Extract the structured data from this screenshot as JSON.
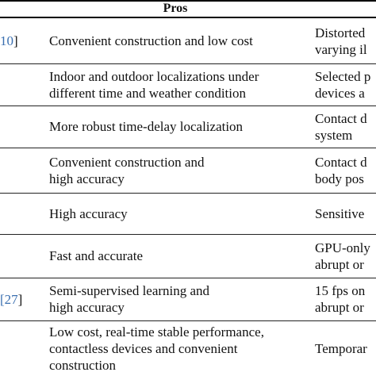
{
  "header": {
    "pros": "Pros"
  },
  "rows": [
    {
      "ref": "10",
      "bracket": "]",
      "pros": "Convenient construction and low cost",
      "cons": "Distorted\nvarying il"
    },
    {
      "ref": "",
      "bracket": "",
      "pros": "Indoor and outdoor localizations under\ndifferent time and weather condition",
      "cons": "Selected p\ndevices a"
    },
    {
      "ref": "",
      "bracket": "",
      "pros": "More robust time-delay localization",
      "cons": "Contact d\nsystem"
    },
    {
      "ref": "",
      "bracket": "",
      "pros": "Convenient construction and\nhigh accuracy",
      "cons": "Contact d\nbody pos"
    },
    {
      "ref": "",
      "bracket": "",
      "pros": "High accuracy",
      "cons": "Sensitive"
    },
    {
      "ref": "",
      "bracket": "",
      "pros": "Fast and accurate",
      "cons": "GPU-only\nabrupt or"
    },
    {
      "ref": "[27",
      "bracket": "]",
      "pros": "Semi-supervised learning and\nhigh accuracy",
      "cons": "15 fps on\nabrupt or"
    },
    {
      "ref": "",
      "bracket": "",
      "pros": "Low cost, real-time stable performance,\ncontactless devices and convenient\nconstruction",
      "cons": "Temporar"
    }
  ]
}
